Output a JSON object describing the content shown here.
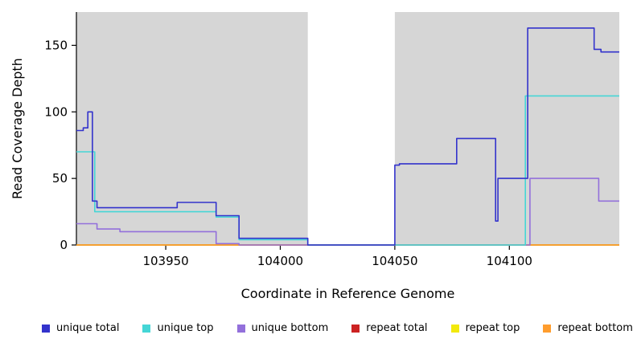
{
  "chart_data": {
    "type": "line",
    "style": "step-after",
    "title": "",
    "xlabel": "Coordinate in Reference Genome",
    "ylabel": "Read Coverage Depth",
    "xlim": [
      103911,
      104148
    ],
    "ylim": [
      0,
      175
    ],
    "xticks": [
      103950,
      104000,
      104050,
      104100
    ],
    "yticks": [
      0,
      50,
      100,
      150
    ],
    "grid": false,
    "plot_background": "#ffffff",
    "shaded_regions": [
      {
        "x0": 103911,
        "x1": 104012,
        "color": "#d6d6d6"
      },
      {
        "x0": 104050,
        "x1": 104148,
        "color": "#d6d6d6"
      }
    ],
    "axis_color": "#000000",
    "legend_position": "bottom",
    "series": [
      {
        "name": "repeat total",
        "color": "#cc2222",
        "steps": [
          [
            103911,
            0
          ],
          [
            104148,
            0
          ]
        ]
      },
      {
        "name": "repeat top",
        "color": "#f2e90d",
        "steps": [
          [
            103911,
            0
          ],
          [
            104148,
            0
          ]
        ]
      },
      {
        "name": "repeat bottom",
        "color": "#ff9d2e",
        "steps": [
          [
            103911,
            0
          ],
          [
            104148,
            0
          ]
        ]
      },
      {
        "name": "unique bottom",
        "color": "#9370db",
        "steps": [
          [
            103911,
            16
          ],
          [
            103920,
            12
          ],
          [
            103930,
            10
          ],
          [
            103972,
            1
          ],
          [
            103982,
            0
          ],
          [
            104109,
            50
          ],
          [
            104139,
            33
          ],
          [
            104148,
            33
          ]
        ]
      },
      {
        "name": "unique top",
        "color": "#45d6d6",
        "steps": [
          [
            103911,
            70
          ],
          [
            103919,
            25
          ],
          [
            103972,
            21
          ],
          [
            103982,
            4
          ],
          [
            104012,
            0
          ],
          [
            104107,
            112
          ],
          [
            104148,
            112
          ]
        ]
      },
      {
        "name": "unique total",
        "color": "#3333cc",
        "steps": [
          [
            103911,
            86
          ],
          [
            103914,
            88
          ],
          [
            103916,
            100
          ],
          [
            103918,
            33
          ],
          [
            103920,
            28
          ],
          [
            103955,
            32
          ],
          [
            103972,
            22
          ],
          [
            103982,
            5
          ],
          [
            104012,
            0
          ],
          [
            104050,
            60
          ],
          [
            104052,
            61
          ],
          [
            104077,
            80
          ],
          [
            104094,
            18
          ],
          [
            104095,
            50
          ],
          [
            104108,
            163
          ],
          [
            104137,
            147
          ],
          [
            104140,
            145
          ],
          [
            104148,
            145
          ]
        ]
      }
    ]
  },
  "legend": {
    "items": [
      {
        "label": "unique total",
        "color": "#3333cc"
      },
      {
        "label": "unique top",
        "color": "#45d6d6"
      },
      {
        "label": "unique bottom",
        "color": "#9370db"
      },
      {
        "label": "repeat total",
        "color": "#cc2222"
      },
      {
        "label": "repeat top",
        "color": "#f2e90d"
      },
      {
        "label": "repeat bottom",
        "color": "#ff9d2e"
      }
    ]
  }
}
